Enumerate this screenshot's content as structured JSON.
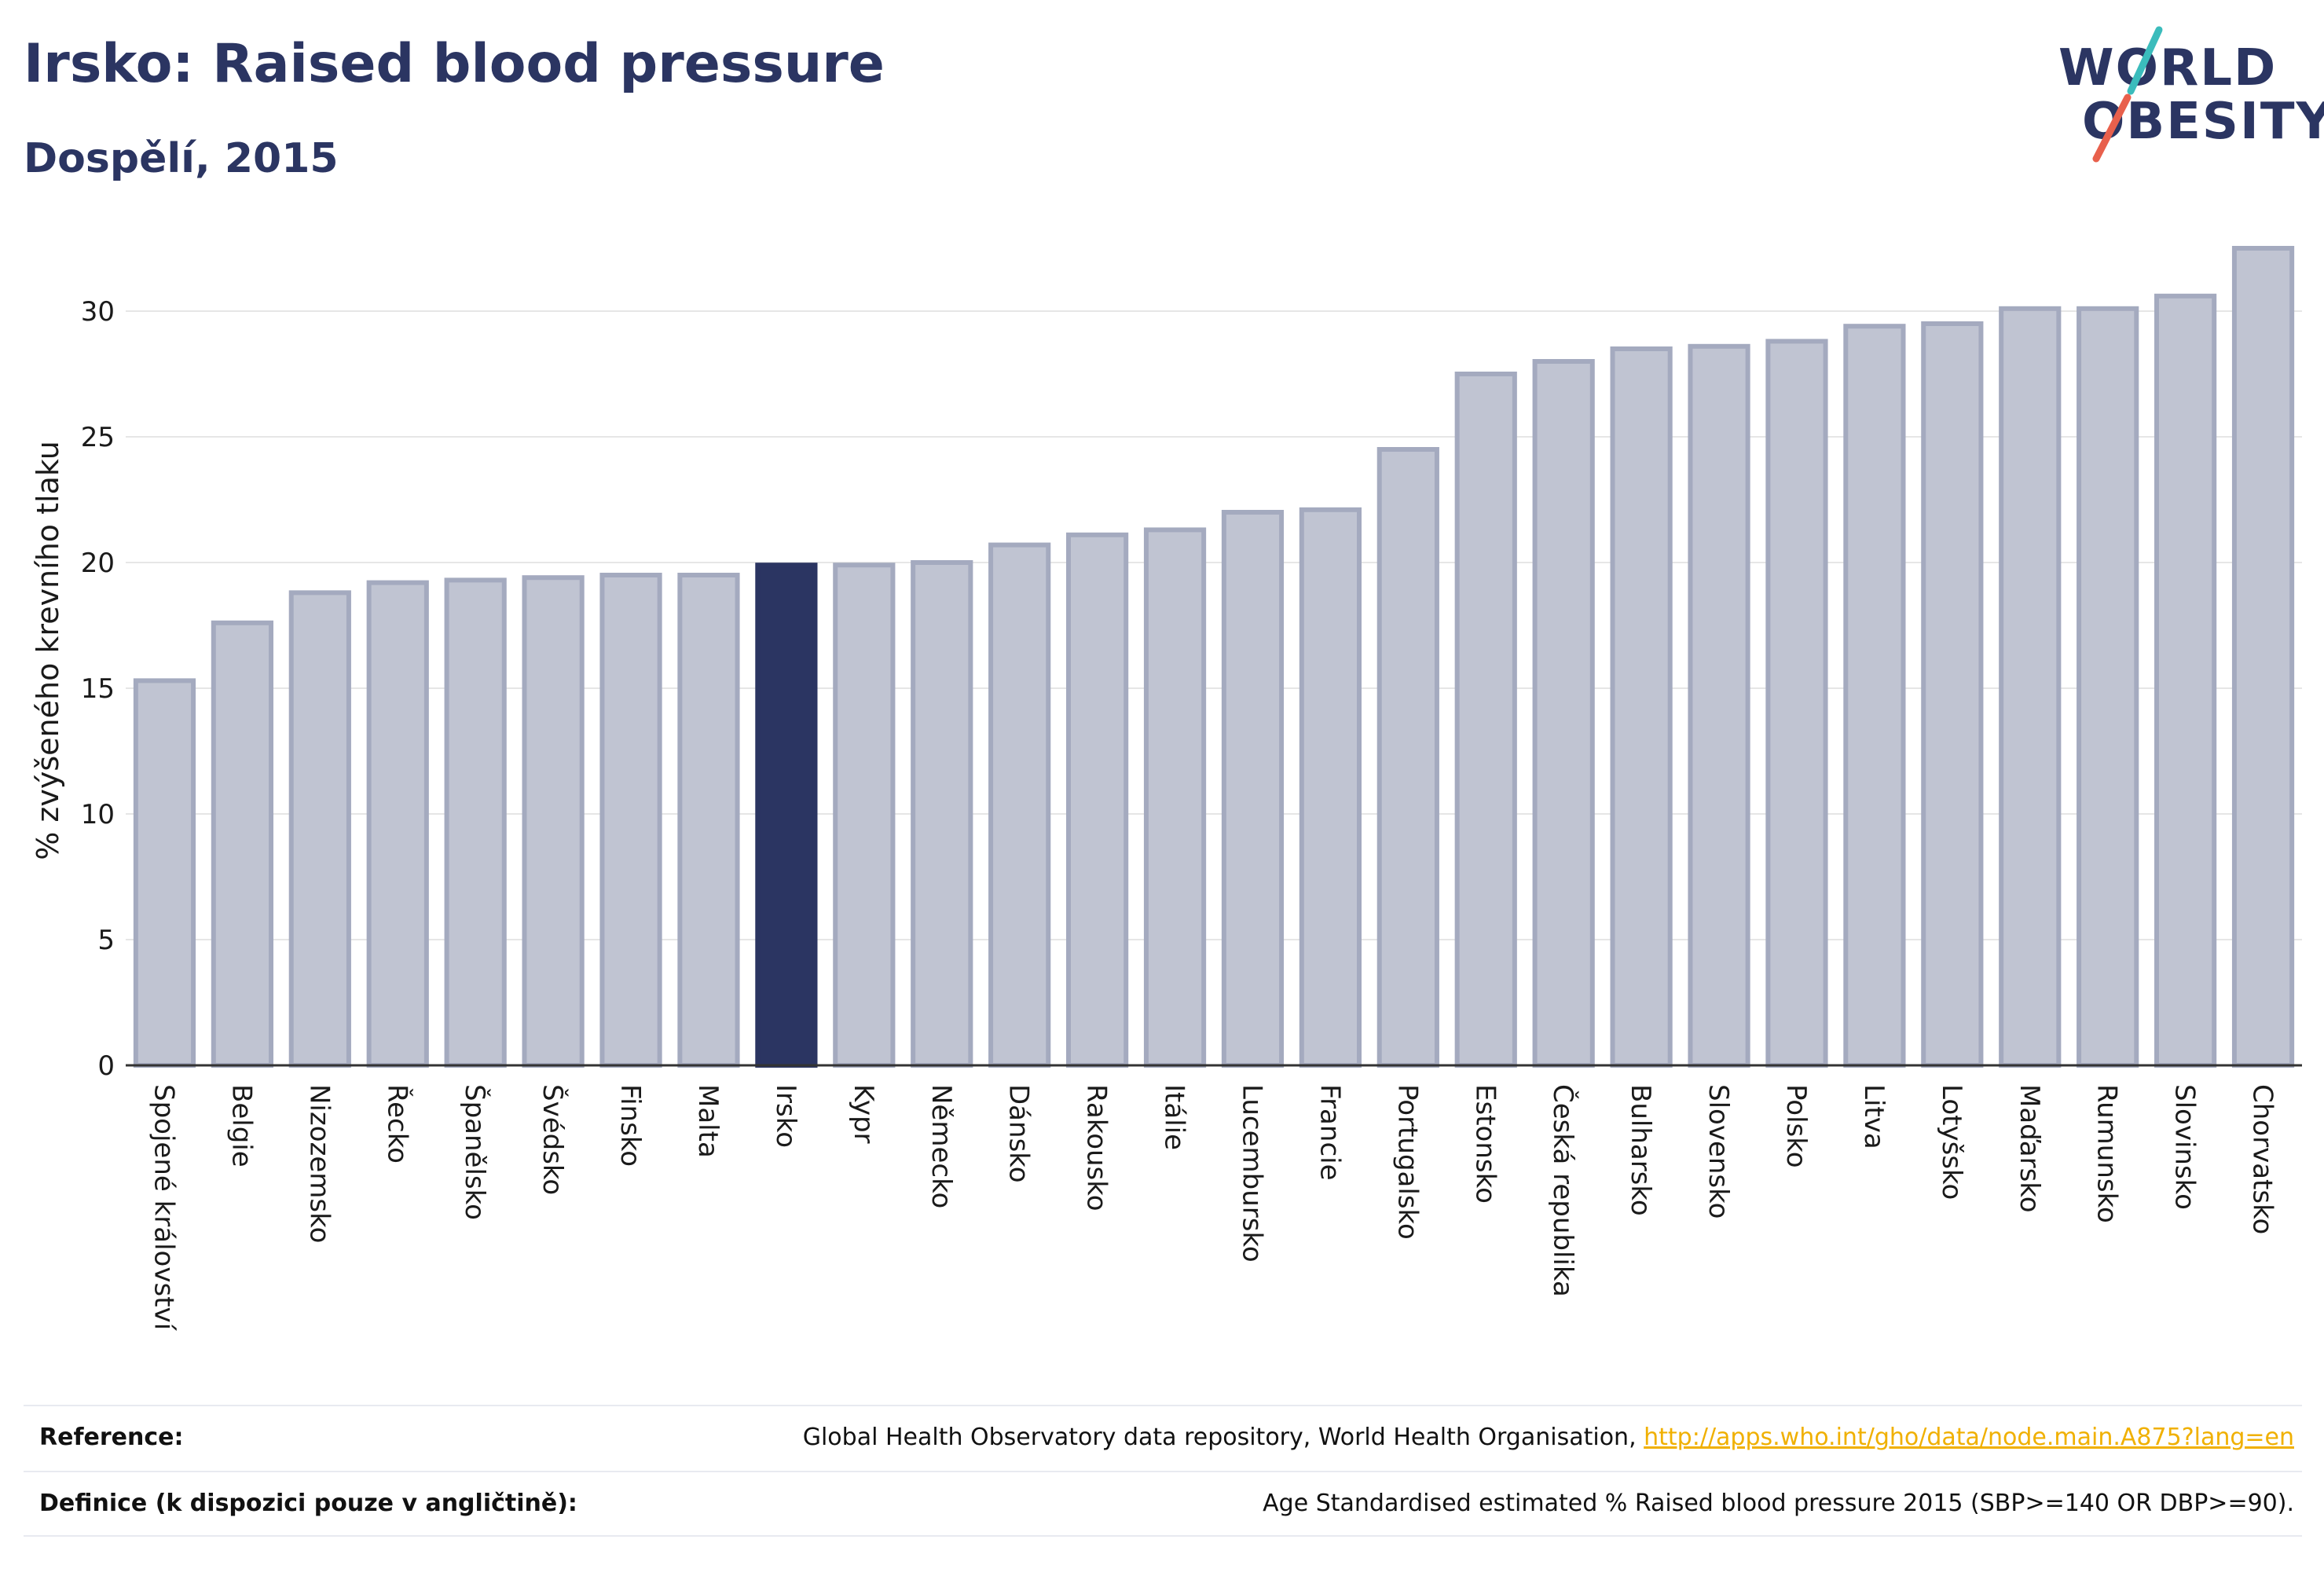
{
  "header": {
    "title": "Irsko: Raised blood pressure",
    "subtitle": "Dospělí, 2015"
  },
  "logo": {
    "line1": "WORLD",
    "line2": "OBESITY",
    "accent_teal": "#3bbcbc",
    "accent_red": "#e8604c"
  },
  "colors": {
    "bar": "#c0c4d2",
    "bar_border": "#a4aabf",
    "highlight": "#2b3562",
    "grid": "#e6e6e6"
  },
  "chart_data": {
    "type": "bar",
    "ylabel": "% zvýšeného krevního tlaku",
    "ylim": [
      0,
      33
    ],
    "yticks": [
      0,
      5,
      10,
      15,
      20,
      25,
      30
    ],
    "grid": true,
    "highlight": "Irsko",
    "categories": [
      "Spojené království",
      "Belgie",
      "Nizozemsko",
      "Řecko",
      "Španělsko",
      "Švédsko",
      "Finsko",
      "Malta",
      "Irsko",
      "Kypr",
      "Německo",
      "Dánsko",
      "Rakousko",
      "Itálie",
      "Lucembursko",
      "Francie",
      "Portugalsko",
      "Estonsko",
      "Česká republika",
      "Bulharsko",
      "Slovensko",
      "Polsko",
      "Litva",
      "Lotyšsko",
      "Maďarsko",
      "Rumunsko",
      "Slovinsko",
      "Chorvatsko"
    ],
    "values": [
      15.3,
      17.6,
      18.8,
      19.2,
      19.3,
      19.4,
      19.5,
      19.5,
      19.9,
      19.9,
      20.0,
      20.7,
      21.1,
      21.3,
      22.0,
      22.1,
      24.5,
      27.5,
      28.0,
      28.5,
      28.6,
      28.8,
      29.4,
      29.5,
      30.1,
      30.1,
      30.6,
      32.5
    ]
  },
  "footer": {
    "reference_label": "Reference:",
    "reference_text": "Global Health Observatory data repository, World Health Organisation, ",
    "reference_link": "http://apps.who.int/gho/data/node.main.A875?lang=en",
    "definition_label": "Definice (k dispozici pouze v angličtině):",
    "definition_text": "Age Standardised estimated % Raised blood pressure 2015 (SBP>=140 OR DBP>=90)."
  }
}
